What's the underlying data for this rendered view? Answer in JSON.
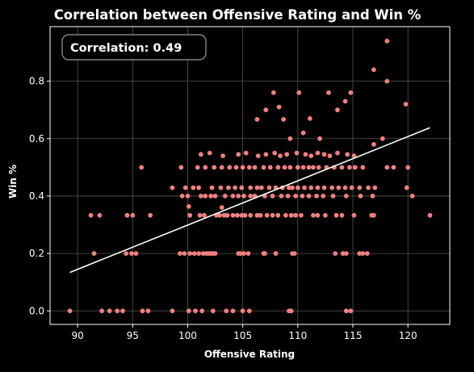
{
  "colors": {
    "background": "#000000",
    "foreground": "#ffffff",
    "points": "#f08080",
    "trend_line": "#ffffff",
    "grid": "#555555"
  },
  "annotation": {
    "label": "Correlation: 0.49"
  },
  "chart_data": {
    "type": "scatter",
    "title": "Correlation between Offensive Rating and Win %",
    "xlabel": "Offensive Rating",
    "ylabel": "Win %",
    "xlim": [
      87.5,
      123.8
    ],
    "ylim": [
      -0.047,
      0.99
    ],
    "x_ticks": [
      90,
      95,
      100,
      105,
      110,
      115,
      120
    ],
    "y_ticks": [
      0.0,
      0.2,
      0.4,
      0.6,
      0.8
    ],
    "x_tick_labels": [
      "90",
      "95",
      "100",
      "105",
      "110",
      "115",
      "120"
    ],
    "y_tick_labels": [
      "0.0",
      "0.2",
      "0.4",
      "0.6",
      "0.8"
    ],
    "grid": true,
    "correlation": 0.49,
    "trend_line": {
      "x": [
        89.3,
        122.0
      ],
      "y": [
        0.134,
        0.638
      ]
    },
    "points": {
      "x": [
        89.3,
        92.2,
        92.9,
        93.6,
        94.1,
        95.9,
        96.4,
        98.6,
        100.1,
        100.7,
        101.3,
        102.3,
        103.5,
        104.1,
        105.0,
        105.6,
        109.2,
        109.4,
        114.4,
        114.8,
        91.5,
        94.4,
        94.9,
        95.3,
        99.3,
        99.7,
        100.2,
        100.6,
        101.0,
        101.4,
        101.7,
        101.9,
        102.1,
        102.3,
        102.5,
        104.6,
        104.8,
        105.1,
        105.5,
        106.9,
        107.0,
        108.0,
        109.5,
        109.7,
        113.4,
        114.1,
        114.4,
        115.6,
        115.9,
        116.3,
        91.2,
        92.0,
        94.5,
        95.0,
        96.6,
        100.2,
        101.1,
        101.5,
        102.6,
        102.9,
        103.3,
        103.6,
        104.1,
        104.5,
        104.9,
        105.2,
        105.7,
        106.3,
        106.6,
        107.2,
        107.7,
        108.2,
        108.9,
        109.4,
        109.8,
        110.3,
        111.4,
        111.8,
        112.5,
        113.5,
        114.0,
        115.1,
        116.7,
        116.9,
        122.0,
        99.5,
        100.0,
        101.2,
        101.6,
        102.1,
        102.5,
        103.4,
        104.1,
        104.6,
        105.1,
        105.7,
        106.1,
        107.0,
        107.7,
        108.5,
        109.1,
        109.8,
        110.4,
        111.0,
        111.7,
        112.3,
        113.2,
        114.4,
        115.7,
        116.8,
        120.4,
        100.1,
        103.1,
        98.6,
        99.8,
        100.5,
        101.0,
        102.2,
        103.0,
        103.7,
        104.3,
        104.9,
        105.7,
        106.3,
        106.7,
        107.4,
        108.0,
        108.6,
        109.2,
        109.5,
        110.0,
        110.6,
        111.2,
        111.8,
        112.4,
        113.1,
        113.7,
        114.3,
        114.9,
        115.6,
        116.4,
        117.0,
        119.9,
        95.8,
        99.4,
        100.9,
        101.6,
        102.4,
        103.1,
        103.8,
        104.4,
        105.0,
        105.6,
        106.1,
        106.9,
        107.5,
        108.2,
        108.8,
        109.3,
        110.0,
        110.5,
        111.0,
        111.4,
        111.9,
        112.6,
        113.3,
        114.0,
        114.7,
        115.2,
        115.9,
        118.1,
        118.7,
        120.0,
        101.2,
        102.0,
        103.2,
        104.6,
        105.3,
        106.4,
        107.1,
        107.9,
        108.4,
        109.0,
        109.9,
        110.7,
        111.2,
        111.8,
        112.4,
        112.9,
        113.6,
        114.5,
        115.1,
        106.3,
        107.1,
        107.8,
        108.3,
        108.7,
        109.3,
        110.1,
        110.5,
        111.1,
        112.0,
        112.8,
        113.6,
        114.3,
        114.8,
        116.9,
        117.7,
        119.8,
        118.1,
        118.1,
        116.9
      ],
      "y": [
        0.0,
        0.0,
        0.0,
        0.0,
        0.0,
        0.0,
        0.0,
        0.0,
        0.0,
        0.0,
        0.0,
        0.0,
        0.0,
        0.0,
        0.0,
        0.0,
        0.0,
        0.0,
        0.0,
        0.0,
        0.2,
        0.2,
        0.2,
        0.2,
        0.2,
        0.2,
        0.2,
        0.2,
        0.2,
        0.2,
        0.2,
        0.2,
        0.2,
        0.2,
        0.2,
        0.2,
        0.2,
        0.2,
        0.2,
        0.2,
        0.2,
        0.2,
        0.2,
        0.2,
        0.2,
        0.2,
        0.2,
        0.2,
        0.2,
        0.2,
        0.333,
        0.333,
        0.333,
        0.333,
        0.333,
        0.333,
        0.333,
        0.333,
        0.333,
        0.333,
        0.333,
        0.333,
        0.333,
        0.333,
        0.333,
        0.333,
        0.333,
        0.333,
        0.333,
        0.333,
        0.333,
        0.333,
        0.333,
        0.333,
        0.333,
        0.333,
        0.333,
        0.333,
        0.333,
        0.333,
        0.333,
        0.333,
        0.333,
        0.333,
        0.333,
        0.4,
        0.4,
        0.4,
        0.4,
        0.4,
        0.4,
        0.4,
        0.4,
        0.4,
        0.4,
        0.4,
        0.4,
        0.4,
        0.4,
        0.4,
        0.4,
        0.4,
        0.4,
        0.4,
        0.4,
        0.4,
        0.4,
        0.4,
        0.4,
        0.4,
        0.4,
        0.364,
        0.36,
        0.429,
        0.429,
        0.429,
        0.429,
        0.429,
        0.429,
        0.429,
        0.429,
        0.429,
        0.429,
        0.429,
        0.429,
        0.429,
        0.429,
        0.429,
        0.429,
        0.429,
        0.429,
        0.429,
        0.429,
        0.429,
        0.429,
        0.429,
        0.429,
        0.429,
        0.429,
        0.429,
        0.429,
        0.429,
        0.429,
        0.5,
        0.5,
        0.5,
        0.5,
        0.5,
        0.5,
        0.5,
        0.5,
        0.5,
        0.5,
        0.5,
        0.5,
        0.5,
        0.5,
        0.5,
        0.5,
        0.5,
        0.5,
        0.5,
        0.5,
        0.5,
        0.5,
        0.5,
        0.5,
        0.5,
        0.5,
        0.5,
        0.5,
        0.5,
        0.5,
        0.545,
        0.55,
        0.54,
        0.545,
        0.55,
        0.54,
        0.545,
        0.55,
        0.54,
        0.545,
        0.55,
        0.545,
        0.54,
        0.55,
        0.545,
        0.54,
        0.55,
        0.545,
        0.54,
        0.667,
        0.7,
        0.76,
        0.71,
        0.667,
        0.6,
        0.76,
        0.62,
        0.67,
        0.6,
        0.76,
        0.7,
        0.73,
        0.76,
        0.84,
        0.6,
        0.72,
        0.8,
        0.94,
        0.58
      ]
    }
  }
}
